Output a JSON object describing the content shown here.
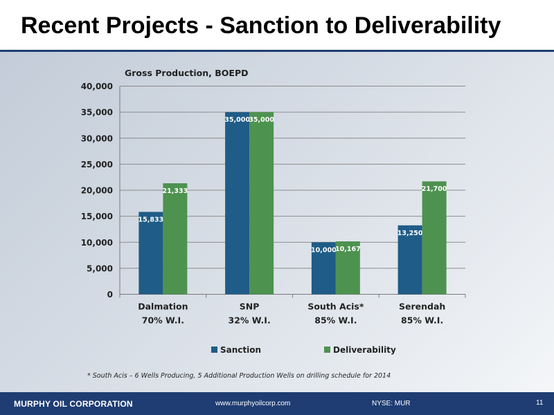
{
  "slide": {
    "title": "Recent Projects - Sanction to Deliverability",
    "footnote": "* South Acis – 6 Wells Producing, 5 Additional Production Wells on drilling schedule for 2014"
  },
  "footer": {
    "company": "MURPHY OIL CORPORATION",
    "url": "www.murphyoilcorp.com",
    "ticker": "NYSE: MUR",
    "page": "11"
  },
  "colors": {
    "sanction": "#1f5c87",
    "deliverability": "#4e9250",
    "brand_navy": "#1f3d73"
  },
  "chart_data": {
    "type": "bar",
    "title": "Gross Production, BOEPD",
    "xlabel": "",
    "ylabel": "",
    "categories": [
      "Dalmation",
      "SNP",
      "South Acis*",
      "Serendah"
    ],
    "category_sublabels": [
      "70% W.I.",
      "32% W.I.",
      "85% W.I.",
      "85% W.I."
    ],
    "series": [
      {
        "name": "Sanction",
        "values": [
          15833,
          35000,
          10000,
          13250
        ],
        "labels": [
          "15,833",
          "35,000",
          "10,000",
          "13,250"
        ]
      },
      {
        "name": "Deliverability",
        "values": [
          21333,
          35000,
          10167,
          21700
        ],
        "labels": [
          "21,333",
          "35,000",
          "10,167",
          "21,700"
        ]
      }
    ],
    "ylim": [
      0,
      40000
    ],
    "yticks": [
      0,
      5000,
      10000,
      15000,
      20000,
      25000,
      30000,
      35000,
      40000
    ],
    "ytick_labels": [
      "0",
      "5,000",
      "10,000",
      "15,000",
      "20,000",
      "25,000",
      "30,000",
      "35,000",
      "40,000"
    ],
    "grid": true,
    "legend_position": "bottom"
  }
}
